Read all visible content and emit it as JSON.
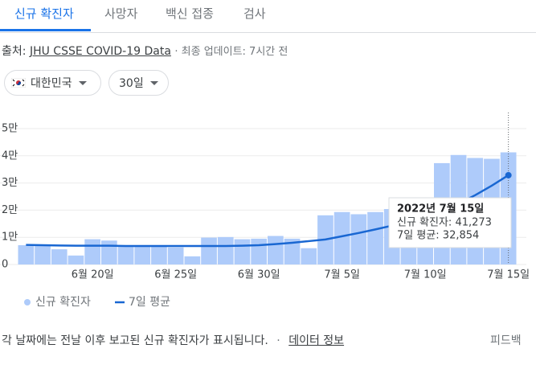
{
  "tabs": [
    "신규 확진자",
    "사망자",
    "백신 접종",
    "검사"
  ],
  "source": {
    "prefix": "출처:",
    "link": "JHU CSSE COVID-19 Data",
    "updated": "· 최종 업데이트: 7시간 전"
  },
  "filters": {
    "region": "대한민국",
    "range": "30일"
  },
  "chart_data": {
    "type": "bar",
    "categories": [
      null,
      null,
      null,
      null,
      "6월 20일",
      null,
      null,
      null,
      null,
      "6월 25일",
      null,
      null,
      null,
      null,
      "6월 30일",
      null,
      null,
      null,
      null,
      "7월 5일",
      null,
      null,
      null,
      null,
      "7월 10일",
      null,
      null,
      null,
      null,
      "7월 15일"
    ],
    "series": [
      {
        "name": "신규 확진자",
        "type": "bar",
        "color": "#aecbfa",
        "values": [
          7100,
          7000,
          5600,
          3300,
          9300,
          8800,
          7000,
          6800,
          6700,
          6300,
          3000,
          9900,
          10100,
          9300,
          9500,
          10500,
          9500,
          6000,
          18100,
          19300,
          18500,
          19300,
          20400,
          20300,
          20400,
          37300,
          40300,
          39200,
          38900,
          41273
        ]
      },
      {
        "name": "7일 평균",
        "type": "line",
        "color": "#1967d2",
        "values": [
          7200,
          7100,
          7000,
          6900,
          6900,
          6900,
          6800,
          6800,
          6800,
          6800,
          6800,
          6800,
          6800,
          6900,
          7100,
          7500,
          8000,
          8600,
          9200,
          10400,
          11600,
          12900,
          14300,
          15600,
          17000,
          19500,
          22400,
          25500,
          29000,
          32854
        ]
      }
    ],
    "ylim": [
      0,
      50000
    ],
    "yticks": [
      0,
      {
        "value": 10000,
        "label": "1만"
      },
      {
        "value": 20000,
        "label": "2만"
      },
      {
        "value": 30000,
        "label": "3만"
      },
      {
        "value": 40000,
        "label": "4만"
      },
      {
        "value": 50000,
        "label": "5만"
      }
    ],
    "grid": true,
    "tooltip": {
      "title": "2022년 7월 15일",
      "lines": [
        "신규 확진자: 41,273",
        "7일 평균: 32,854"
      ]
    }
  },
  "footer": {
    "note": "각 날짜에는 전날 이후 보고된 신규 확진자가 표시됩니다.",
    "separator": "·",
    "link": "데이터 정보",
    "feedback": "피드백"
  }
}
